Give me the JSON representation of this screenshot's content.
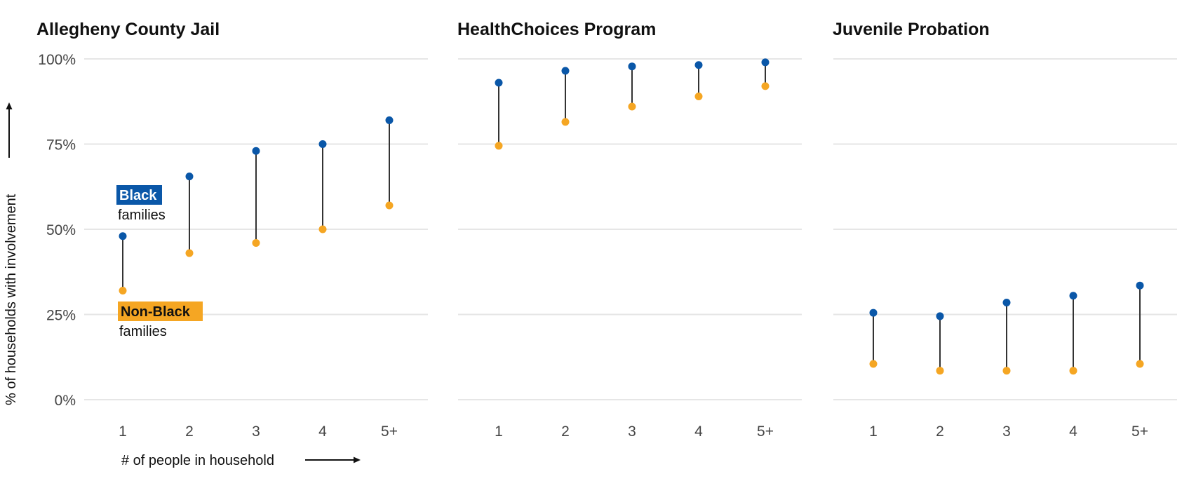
{
  "chart_data": [
    {
      "type": "dumbbell",
      "title": "Allegheny County Jail",
      "categories": [
        "1",
        "2",
        "3",
        "4",
        "5+"
      ],
      "series": [
        {
          "name": "Black",
          "sub": "families",
          "color": "#0a57a8",
          "values": [
            48,
            65.5,
            73,
            75,
            82
          ]
        },
        {
          "name": "Non-Black",
          "sub": "families",
          "color": "#f5a623",
          "values": [
            32,
            43,
            46,
            50,
            57
          ]
        }
      ],
      "ylim": [
        0,
        100
      ],
      "yticks": [
        0,
        25,
        50,
        75,
        100
      ],
      "ylabel": "% of households with involvement",
      "xlabel": "# of people in household"
    },
    {
      "type": "dumbbell",
      "title": "HealthChoices Program",
      "categories": [
        "1",
        "2",
        "3",
        "4",
        "5+"
      ],
      "series": [
        {
          "color": "#0a57a8",
          "values": [
            93,
            96.5,
            97.8,
            98.2,
            99
          ]
        },
        {
          "color": "#f5a623",
          "values": [
            74.5,
            81.5,
            86,
            89,
            92
          ]
        }
      ],
      "ylim": [
        0,
        100
      ]
    },
    {
      "type": "dumbbell",
      "title": "Juvenile Probation",
      "categories": [
        "1",
        "2",
        "3",
        "4",
        "5+"
      ],
      "series": [
        {
          "color": "#0a57a8",
          "values": [
            25.5,
            24.5,
            28.5,
            30.5,
            33.5
          ]
        },
        {
          "color": "#f5a623",
          "values": [
            10.5,
            8.5,
            8.5,
            8.5,
            10.5
          ]
        }
      ],
      "ylim": [
        0,
        100
      ]
    }
  ]
}
